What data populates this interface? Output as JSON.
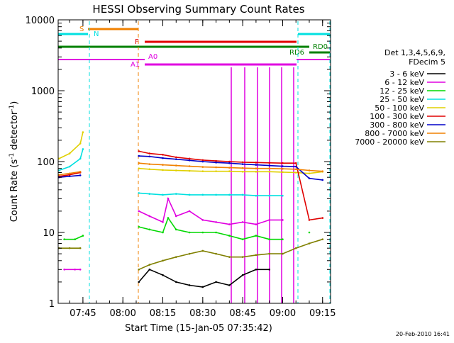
{
  "chart_data": {
    "type": "line",
    "title": "HESSI Observing Summary Count Rates",
    "xlabel": "Start Time (15-Jan-05 07:35:42)",
    "ylabel_main": "Count Rate (s",
    "ylabel_sup1": "-1",
    "ylabel_mid": " detector",
    "ylabel_sup2": "-1",
    "ylabel_end": ")",
    "y_scale": "log",
    "xlim": [
      "07:35:42",
      "09:18:00"
    ],
    "ylim": [
      1,
      10000
    ],
    "x_ticks": [
      "07:45",
      "08:00",
      "08:15",
      "08:30",
      "08:45",
      "09:00",
      "09:15"
    ],
    "y_ticks": [
      {
        "value": 1,
        "label": "1"
      },
      {
        "value": 10,
        "label": "10"
      },
      {
        "value": 100,
        "label": "100"
      },
      {
        "value": 1000,
        "label": "1000"
      },
      {
        "value": 10000,
        "label": "10000"
      }
    ],
    "legend": {
      "title_line1": "Det 1,3,4,5,6,9,",
      "title_line2": "FDecim 5",
      "placement": "right"
    },
    "series": [
      {
        "name": "3 - 6 keV",
        "color": "#000000",
        "points": [
          [
            "08:06",
            2
          ],
          [
            "08:10",
            3
          ],
          [
            "08:15",
            2.5
          ],
          [
            "08:20",
            2
          ],
          [
            "08:25",
            1.8
          ],
          [
            "08:30",
            1.7
          ],
          [
            "08:35",
            2
          ],
          [
            "08:40",
            1.8
          ],
          [
            "08:45",
            2.5
          ],
          [
            "08:50",
            3
          ],
          [
            "08:55",
            3
          ]
        ]
      },
      {
        "name": "6 - 12 keV",
        "color": "#e000e0",
        "points": [
          [
            "07:38",
            3
          ],
          [
            "07:42",
            3
          ],
          [
            "07:44",
            3
          ],
          [
            "08:06",
            20
          ],
          [
            "08:10",
            17
          ],
          [
            "08:15",
            14
          ],
          [
            "08:17",
            30
          ],
          [
            "08:20",
            17
          ],
          [
            "08:25",
            20
          ],
          [
            "08:30",
            15
          ],
          [
            "08:35",
            14
          ],
          [
            "08:40",
            13
          ],
          [
            "08:45",
            14
          ],
          [
            "08:50",
            13
          ],
          [
            "08:55",
            15
          ],
          [
            "09:00",
            15
          ]
        ]
      },
      {
        "name": "12 - 25 keV",
        "color": "#00d800",
        "points": [
          [
            "07:38",
            8
          ],
          [
            "07:42",
            8
          ],
          [
            "07:45",
            9
          ],
          [
            "08:06",
            12
          ],
          [
            "08:10",
            11
          ],
          [
            "08:15",
            10
          ],
          [
            "08:17",
            16
          ],
          [
            "08:20",
            11
          ],
          [
            "08:25",
            10
          ],
          [
            "08:30",
            10
          ],
          [
            "08:35",
            10
          ],
          [
            "08:40",
            9
          ],
          [
            "08:45",
            8
          ],
          [
            "08:50",
            9
          ],
          [
            "08:55",
            8
          ],
          [
            "09:00",
            8
          ],
          [
            "09:10",
            10
          ]
        ]
      },
      {
        "name": "25 - 50 keV",
        "color": "#00e0e0",
        "points": [
          [
            "07:36",
            75
          ],
          [
            "07:40",
            85
          ],
          [
            "07:44",
            110
          ],
          [
            "07:45",
            150
          ],
          [
            "08:06",
            36
          ],
          [
            "08:10",
            35
          ],
          [
            "08:15",
            34
          ],
          [
            "08:20",
            35
          ],
          [
            "08:25",
            34
          ],
          [
            "08:30",
            34
          ],
          [
            "08:35",
            34
          ],
          [
            "08:40",
            34
          ],
          [
            "08:45",
            34
          ],
          [
            "08:50",
            33
          ],
          [
            "08:55",
            33
          ],
          [
            "09:00",
            33
          ]
        ]
      },
      {
        "name": "50 - 100 keV",
        "color": "#e0d000",
        "points": [
          [
            "07:36",
            110
          ],
          [
            "07:40",
            130
          ],
          [
            "07:44",
            180
          ],
          [
            "07:45",
            260
          ],
          [
            "08:06",
            80
          ],
          [
            "08:10",
            78
          ],
          [
            "08:15",
            76
          ],
          [
            "08:20",
            75
          ],
          [
            "08:25",
            74
          ],
          [
            "08:30",
            73
          ],
          [
            "08:35",
            73
          ],
          [
            "08:40",
            73
          ],
          [
            "08:45",
            72
          ],
          [
            "08:50",
            72
          ],
          [
            "08:55",
            72
          ],
          [
            "09:00",
            71
          ],
          [
            "09:05",
            70
          ],
          [
            "09:10",
            68
          ],
          [
            "09:15",
            72
          ]
        ]
      },
      {
        "name": "100 - 300 keV",
        "color": "#e00000",
        "points": [
          [
            "07:36",
            62
          ],
          [
            "07:40",
            65
          ],
          [
            "07:44",
            70
          ],
          [
            "08:06",
            140
          ],
          [
            "08:10",
            130
          ],
          [
            "08:15",
            125
          ],
          [
            "08:20",
            115
          ],
          [
            "08:25",
            110
          ],
          [
            "08:30",
            105
          ],
          [
            "08:35",
            102
          ],
          [
            "08:40",
            100
          ],
          [
            "08:45",
            98
          ],
          [
            "08:50",
            97
          ],
          [
            "08:55",
            96
          ],
          [
            "09:00",
            95
          ],
          [
            "09:05",
            95
          ],
          [
            "09:10",
            15
          ],
          [
            "09:15",
            16
          ]
        ]
      },
      {
        "name": "300 - 800 keV",
        "color": "#0000c8",
        "points": [
          [
            "07:36",
            60
          ],
          [
            "07:40",
            62
          ],
          [
            "07:44",
            64
          ],
          [
            "08:06",
            120
          ],
          [
            "08:10",
            118
          ],
          [
            "08:15",
            112
          ],
          [
            "08:20",
            108
          ],
          [
            "08:25",
            104
          ],
          [
            "08:30",
            100
          ],
          [
            "08:35",
            97
          ],
          [
            "08:40",
            95
          ],
          [
            "08:45",
            92
          ],
          [
            "08:50",
            90
          ],
          [
            "08:55",
            88
          ],
          [
            "09:00",
            86
          ],
          [
            "09:05",
            85
          ],
          [
            "09:10",
            58
          ],
          [
            "09:15",
            55
          ]
        ]
      },
      {
        "name": "800 - 7000 keV",
        "color": "#f08000",
        "points": [
          [
            "07:36",
            65
          ],
          [
            "07:40",
            68
          ],
          [
            "07:44",
            72
          ],
          [
            "08:06",
            95
          ],
          [
            "08:10",
            92
          ],
          [
            "08:15",
            90
          ],
          [
            "08:20",
            88
          ],
          [
            "08:25",
            86
          ],
          [
            "08:30",
            84
          ],
          [
            "08:35",
            83
          ],
          [
            "08:40",
            82
          ],
          [
            "08:45",
            81
          ],
          [
            "08:50",
            80
          ],
          [
            "08:55",
            80
          ],
          [
            "09:00",
            79
          ],
          [
            "09:05",
            78
          ],
          [
            "09:10",
            75
          ],
          [
            "09:15",
            73
          ]
        ]
      },
      {
        "name": "7000 - 20000 keV",
        "color": "#808000",
        "points": [
          [
            "07:36",
            6
          ],
          [
            "07:40",
            6
          ],
          [
            "07:44",
            6
          ],
          [
            "08:06",
            3
          ],
          [
            "08:10",
            3.5
          ],
          [
            "08:15",
            4
          ],
          [
            "08:20",
            4.5
          ],
          [
            "08:25",
            5
          ],
          [
            "08:30",
            5.5
          ],
          [
            "08:35",
            5
          ],
          [
            "08:40",
            4.5
          ],
          [
            "08:45",
            4.5
          ],
          [
            "08:50",
            4.8
          ],
          [
            "08:55",
            5
          ],
          [
            "09:00",
            5
          ],
          [
            "09:05",
            6
          ],
          [
            "09:10",
            7
          ],
          [
            "09:15",
            8
          ]
        ]
      }
    ],
    "annotations": [
      {
        "label": "S",
        "color": "#f08000"
      },
      {
        "label": "N",
        "color": "#00e0e0"
      },
      {
        "label": "F",
        "color": "#e00000"
      },
      {
        "label": "RD0",
        "color": "#008000"
      },
      {
        "label": "RD6",
        "color": "#008000"
      },
      {
        "label": "A0",
        "color": "#e000e0"
      },
      {
        "label": "A1",
        "color": "#e000e0"
      }
    ],
    "footer": "20-Feb-2010 16:41"
  }
}
